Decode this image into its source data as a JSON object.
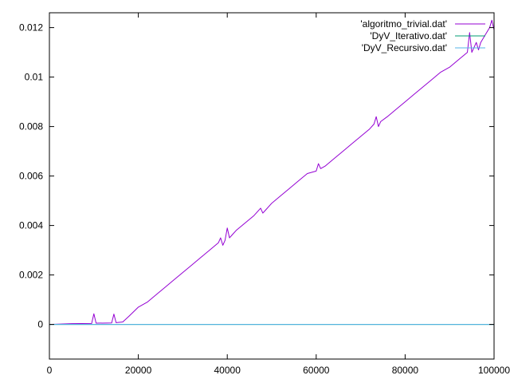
{
  "chart_data": {
    "type": "line",
    "title": "",
    "xlabel": "",
    "ylabel": "",
    "xlim": [
      0,
      100000
    ],
    "ylim": [
      -0.0014,
      0.0126
    ],
    "grid": false,
    "legend_position": "top-right",
    "x_ticks": [
      {
        "value": 0,
        "label": "0"
      },
      {
        "value": 20000,
        "label": "20000"
      },
      {
        "value": 40000,
        "label": "40000"
      },
      {
        "value": 60000,
        "label": "60000"
      },
      {
        "value": 80000,
        "label": "80000"
      },
      {
        "value": 100000,
        "label": "100000"
      }
    ],
    "y_ticks": [
      {
        "value": 0,
        "label": "0"
      },
      {
        "value": 0.002,
        "label": "0.002"
      },
      {
        "value": 0.004,
        "label": "0.004"
      },
      {
        "value": 0.006,
        "label": "0.006"
      },
      {
        "value": 0.008,
        "label": "0.008"
      },
      {
        "value": 0.01,
        "label": "0.01"
      },
      {
        "value": 0.012,
        "label": "0.012"
      }
    ],
    "series": [
      {
        "name": "'algoritmo_trivial.dat'",
        "color": "#9400d3",
        "x": [
          0,
          5000,
          9500,
          10000,
          10500,
          14000,
          14500,
          15000,
          16500,
          18000,
          20000,
          22000,
          24000,
          26000,
          28000,
          30000,
          32000,
          34000,
          36000,
          38000,
          38500,
          39000,
          39500,
          40000,
          40500,
          41000,
          42000,
          44000,
          46000,
          47500,
          48000,
          48500,
          50000,
          52000,
          54000,
          56000,
          58000,
          60000,
          60500,
          61000,
          62000,
          64000,
          66000,
          68000,
          70000,
          72000,
          73000,
          73500,
          74000,
          74500,
          76000,
          78000,
          80000,
          82000,
          84000,
          86000,
          88000,
          90000,
          92000,
          94000,
          94500,
          95000,
          95500,
          96000,
          96500,
          97000,
          98000,
          99000,
          99500,
          100000
        ],
        "y": [
          0,
          3e-05,
          4e-05,
          0.00043,
          5e-05,
          6e-05,
          0.00042,
          7e-05,
          0.0001,
          0.00035,
          0.0007,
          0.0009,
          0.0012,
          0.0015,
          0.0018,
          0.0021,
          0.0024,
          0.0027,
          0.003,
          0.0033,
          0.0035,
          0.0032,
          0.0034,
          0.0039,
          0.0035,
          0.0036,
          0.0038,
          0.0041,
          0.0044,
          0.0047,
          0.0045,
          0.0046,
          0.0049,
          0.0052,
          0.0055,
          0.0058,
          0.0061,
          0.0062,
          0.0065,
          0.0063,
          0.0064,
          0.0067,
          0.007,
          0.0073,
          0.0076,
          0.0079,
          0.0081,
          0.0084,
          0.008,
          0.0082,
          0.0084,
          0.0087,
          0.009,
          0.0093,
          0.0096,
          0.0099,
          0.0102,
          0.0104,
          0.0107,
          0.011,
          0.0118,
          0.011,
          0.0112,
          0.0114,
          0.0111,
          0.0114,
          0.0117,
          0.012,
          0.0123,
          0.0119
        ]
      },
      {
        "name": "'DyV_Iterativo.dat'",
        "color": "#009e73",
        "x": [
          0,
          100000
        ],
        "y": [
          0,
          0
        ]
      },
      {
        "name": "'DyV_Recursivo.dat'",
        "color": "#56b4e9",
        "x": [
          0,
          100000
        ],
        "y": [
          0,
          0
        ]
      }
    ]
  }
}
